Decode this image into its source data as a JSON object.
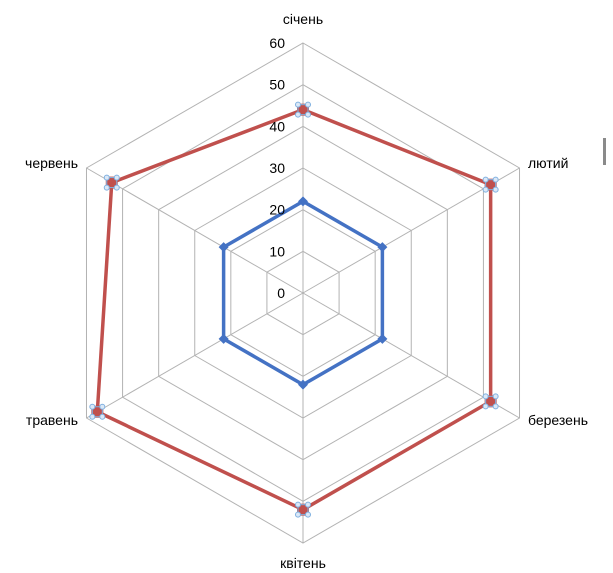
{
  "chart_data": {
    "type": "radar",
    "categories": [
      "січень",
      "лютий",
      "березень",
      "квітень",
      "травень",
      "червень"
    ],
    "series": [
      {
        "color": "#4472c4",
        "values": [
          22,
          22,
          22,
          22,
          22,
          22
        ]
      },
      {
        "color": "#c0504d",
        "values": [
          44,
          52,
          52,
          52,
          57,
          53
        ]
      }
    ],
    "axis": {
      "min": 0,
      "max": 60,
      "step": 10,
      "ticks": [
        "0",
        "10",
        "20",
        "30",
        "40",
        "50",
        "60"
      ]
    },
    "grid": true,
    "legend": "none",
    "colors": {
      "gridline": "#b3b3b3",
      "marker_outline": "#7fb0e0"
    }
  }
}
